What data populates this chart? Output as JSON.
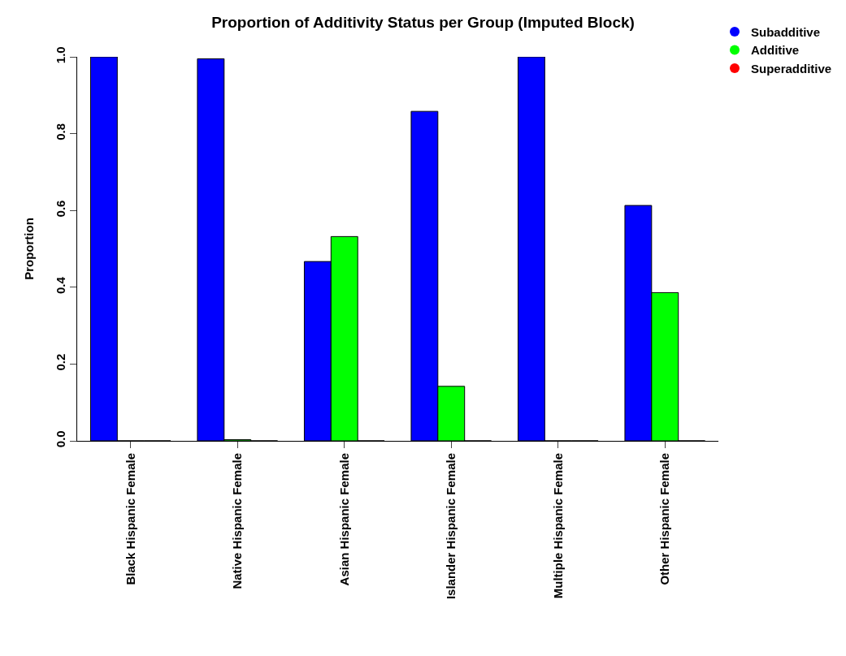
{
  "chart_data": {
    "type": "bar",
    "title": "Proportion of Additivity Status per Group (Imputed Block)",
    "ylabel": "Proportion",
    "categories": [
      "Black Hispanic Female",
      "Native Hispanic Female",
      "Asian Hispanic Female",
      "Islander Hispanic Female",
      "Multiple Hispanic Female",
      "Other Hispanic Female"
    ],
    "series": [
      {
        "name": "Subadditive",
        "color": "#0000ff",
        "values": [
          1.0,
          0.995,
          0.467,
          0.858,
          1.0,
          0.613
        ]
      },
      {
        "name": "Additive",
        "color": "#00ff00",
        "values": [
          0.0,
          0.003,
          0.532,
          0.142,
          0.0,
          0.386
        ]
      },
      {
        "name": "Superadditive",
        "color": "#ff0000",
        "values": [
          0.0,
          0.0,
          0.0,
          0.0,
          0.0,
          0.0
        ]
      }
    ],
    "ylim": [
      0,
      1.0
    ],
    "yticks": [
      {
        "value": 0,
        "label": "0.0"
      },
      0.2,
      0.4,
      0.6,
      0.8,
      {
        "value": 1,
        "label": "1.0"
      }
    ],
    "legend": "top right"
  }
}
